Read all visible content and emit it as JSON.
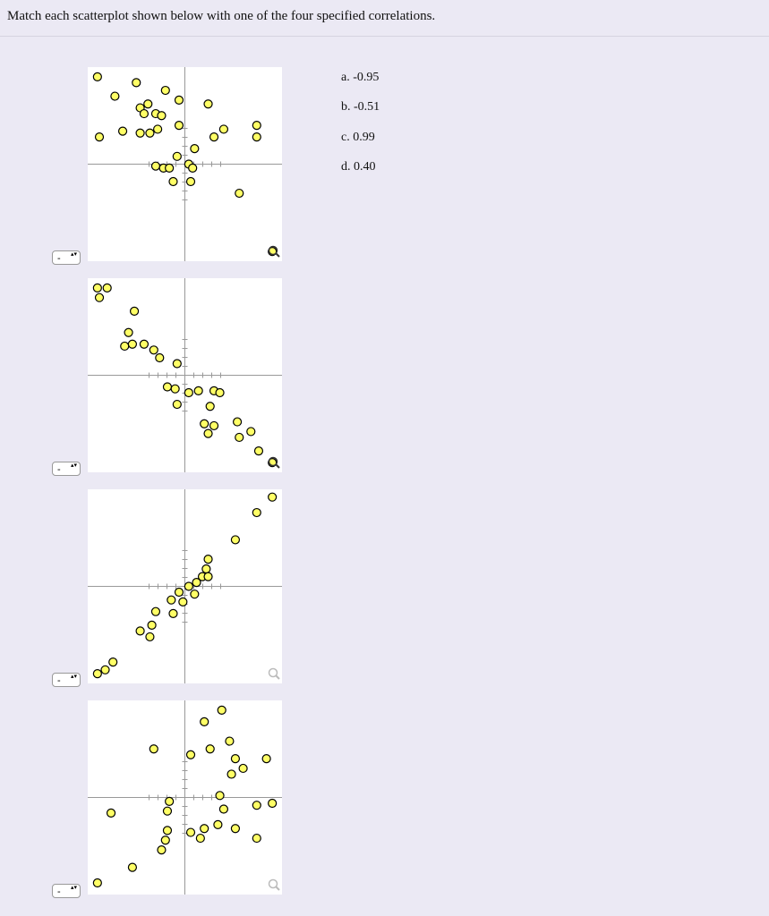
{
  "header": {
    "instruction": "Match each scatterplot shown below with one of the four specified correlations."
  },
  "options": [
    "a. -0.95",
    "b. -0.51",
    "c. 0.99",
    "d. 0.40"
  ],
  "selects": [
    "-",
    "-",
    "-",
    "-"
  ],
  "plots": [
    {
      "type": "scatter",
      "xlim": [
        -5,
        5
      ],
      "ylim": [
        -5,
        5
      ],
      "x": [
        -4.5,
        -2.5,
        -3.6,
        -1.0,
        -0.3,
        1.2,
        -2.3,
        -1.9,
        -1.5,
        -1.2,
        -2.1,
        -4.4,
        -3.2,
        -2.3,
        -1.8,
        -1.4,
        -0.3,
        1.5,
        2.0,
        3.7,
        3.7,
        0.5,
        -0.4,
        -1.5,
        -1.1,
        -0.8,
        0.2,
        0.4,
        -0.6,
        0.3,
        2.8,
        4.5
      ],
      "y": [
        4.5,
        4.2,
        3.5,
        3.8,
        3.3,
        3.1,
        2.9,
        3.1,
        2.6,
        2.5,
        2.6,
        1.4,
        1.7,
        1.6,
        1.6,
        1.8,
        2.0,
        1.4,
        1.8,
        2.0,
        1.4,
        0.8,
        0.4,
        -0.1,
        -0.2,
        -0.2,
        0.0,
        -0.2,
        -0.9,
        -0.9,
        -1.5,
        -4.5
      ]
    },
    {
      "type": "scatter",
      "xlim": [
        -5,
        5
      ],
      "ylim": [
        -5,
        5
      ],
      "x": [
        -4.5,
        -4.0,
        -4.4,
        -2.6,
        -2.9,
        -3.1,
        -2.7,
        -2.1,
        -1.6,
        -1.3,
        -0.4,
        -0.9,
        -0.5,
        0.2,
        0.7,
        1.5,
        1.8,
        -0.4,
        1.3,
        1.0,
        1.5,
        1.2,
        2.7,
        2.8,
        3.4,
        3.8,
        4.5
      ],
      "y": [
        4.5,
        4.5,
        4.0,
        3.3,
        2.2,
        1.5,
        1.6,
        1.6,
        1.3,
        0.9,
        0.6,
        -0.6,
        -0.7,
        -0.9,
        -0.8,
        -0.8,
        -0.9,
        -1.5,
        -1.6,
        -2.5,
        -2.6,
        -3.0,
        -2.4,
        -3.2,
        -2.9,
        -3.9,
        -4.5
      ]
    },
    {
      "type": "scatter",
      "xlim": [
        -5,
        5
      ],
      "ylim": [
        -5,
        5
      ],
      "x": [
        4.5,
        3.7,
        2.6,
        1.2,
        1.1,
        0.9,
        1.2,
        0.6,
        0.2,
        -0.3,
        0.5,
        -0.7,
        -0.1,
        -1.5,
        -0.6,
        -1.7,
        -2.3,
        -1.8,
        -3.7,
        -4.1,
        -4.5
      ],
      "y": [
        4.6,
        3.8,
        2.4,
        1.4,
        0.9,
        0.5,
        0.5,
        0.2,
        0.0,
        -0.3,
        -0.4,
        -0.7,
        -0.8,
        -1.3,
        -1.4,
        -2.0,
        -2.3,
        -2.6,
        -3.9,
        -4.3,
        -4.5
      ]
    },
    {
      "type": "scatter",
      "xlim": [
        -5,
        5
      ],
      "ylim": [
        -5,
        5
      ],
      "x": [
        1.9,
        1.0,
        2.3,
        -1.6,
        0.3,
        1.3,
        2.6,
        4.2,
        3.0,
        2.4,
        -0.8,
        -0.9,
        1.8,
        2.0,
        3.7,
        4.5,
        -3.8,
        -0.9,
        -1.0,
        0.3,
        1.0,
        1.7,
        2.6,
        3.7,
        0.8,
        -1.2,
        -2.7,
        -4.5
      ],
      "y": [
        4.5,
        3.9,
        2.9,
        2.5,
        2.2,
        2.5,
        2.0,
        2.0,
        1.5,
        1.2,
        -0.2,
        -0.7,
        0.1,
        -0.6,
        -0.4,
        -0.3,
        -0.8,
        -1.7,
        -2.2,
        -1.8,
        -1.6,
        -1.4,
        -1.6,
        -2.1,
        -2.1,
        -2.7,
        -3.6,
        -4.4
      ]
    }
  ]
}
